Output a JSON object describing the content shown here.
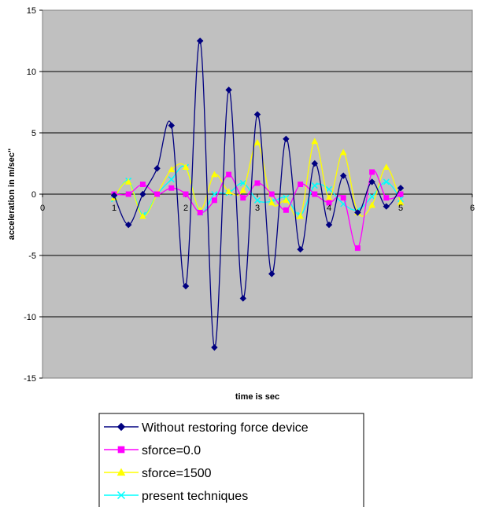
{
  "chart_data": {
    "type": "line",
    "xlabel": "time is sec",
    "ylabel": "acceleration in m/sec\"",
    "xlim": [
      0,
      6
    ],
    "ylim": [
      -15,
      15
    ],
    "x_ticks": [
      "0",
      "1",
      "2",
      "3",
      "4",
      "5",
      "6"
    ],
    "y_ticks": [
      "-15",
      "-10",
      "-5",
      "0",
      "5",
      "10",
      "15"
    ],
    "grid": "horizontal",
    "plot_background": "#c0c0c0",
    "legend_position": "bottom",
    "x": [
      1.0,
      1.2,
      1.4,
      1.6,
      1.8,
      2.0,
      2.2,
      2.4,
      2.6,
      2.8,
      3.0,
      3.2,
      3.4,
      3.6,
      3.8,
      4.0,
      4.2,
      4.4,
      4.6,
      4.8,
      5.0
    ],
    "series": [
      {
        "name": "Without restoring  force device",
        "color": "#000080",
        "marker": "diamond",
        "values": [
          -0.1,
          -2.5,
          0.0,
          2.1,
          5.6,
          -7.5,
          12.5,
          -12.5,
          8.5,
          -8.5,
          6.5,
          -6.5,
          4.5,
          -4.5,
          2.5,
          -2.5,
          1.5,
          -1.5,
          1.0,
          -1.0,
          0.5
        ]
      },
      {
        "name": "sforce=0.0",
        "color": "#ff00ff",
        "marker": "square",
        "values": [
          0.0,
          0.0,
          0.8,
          0.0,
          0.5,
          0.0,
          -1.5,
          -0.5,
          1.6,
          -0.3,
          0.9,
          0.0,
          -1.3,
          0.8,
          0.0,
          -0.7,
          -0.3,
          -4.4,
          1.8,
          -0.3,
          0.0
        ]
      },
      {
        "name": "sforce=1500",
        "color": "#ffff00",
        "marker": "triangle",
        "values": [
          -0.3,
          1.0,
          -1.8,
          0.0,
          2.0,
          2.2,
          -1.3,
          1.6,
          0.2,
          0.3,
          4.2,
          -0.7,
          -0.5,
          -1.8,
          4.3,
          -0.3,
          3.4,
          -1.5,
          -0.9,
          2.2,
          -0.7
        ]
      },
      {
        "name": "present techniques",
        "color": "#00ffff",
        "marker": "x",
        "values": [
          -0.4,
          1.1,
          -1.7,
          0.0,
          1.2,
          2.2,
          -1.5,
          0.0,
          0.1,
          0.9,
          -0.5,
          -0.6,
          -0.3,
          -1.7,
          0.7,
          0.4,
          -0.8,
          -1.3,
          -0.2,
          1.0,
          -0.4
        ]
      }
    ]
  }
}
